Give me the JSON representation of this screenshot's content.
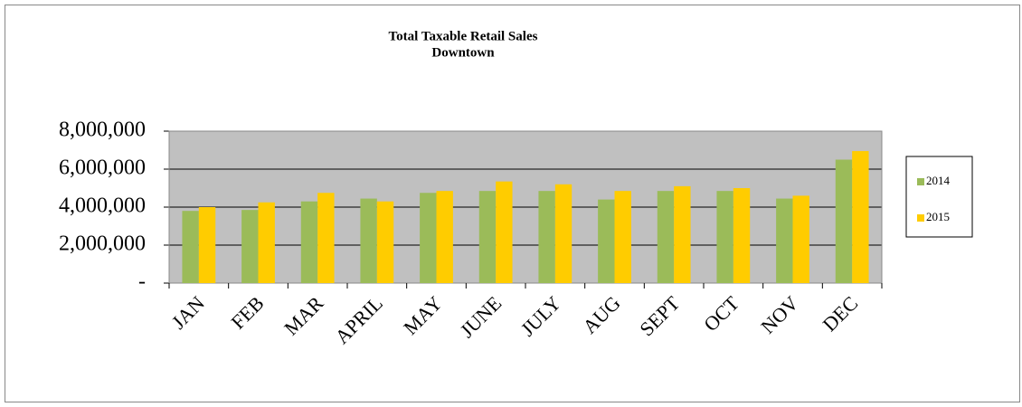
{
  "chart_data": {
    "type": "bar",
    "title": "Total Taxable Retail Sales",
    "subtitle": "Downtown",
    "categories": [
      "JAN",
      "FEB",
      "MAR",
      "APRIL",
      "MAY",
      "JUNE",
      "JULY",
      "AUG",
      "SEPT",
      "OCT",
      "NOV",
      "DEC"
    ],
    "series": [
      {
        "name": "2014",
        "color": "#9bbb59",
        "values": [
          3800000,
          3850000,
          4300000,
          4450000,
          4750000,
          4850000,
          4850000,
          4400000,
          4850000,
          4850000,
          4450000,
          6500000
        ]
      },
      {
        "name": "2015",
        "color": "#ffcc00",
        "values": [
          4000000,
          4250000,
          4750000,
          4300000,
          4850000,
          5350000,
          5200000,
          4850000,
          5100000,
          5000000,
          4600000,
          6950000
        ]
      }
    ],
    "ylim": [
      0,
      8000000
    ],
    "yticks": [
      {
        "value": 0,
        "label": "-"
      },
      {
        "value": 2000000,
        "label": "2,000,000"
      },
      {
        "value": 4000000,
        "label": "4,000,000"
      },
      {
        "value": 6000000,
        "label": "6,000,000"
      },
      {
        "value": 8000000,
        "label": "8,000,000"
      }
    ],
    "grid": true,
    "legend": "right"
  }
}
